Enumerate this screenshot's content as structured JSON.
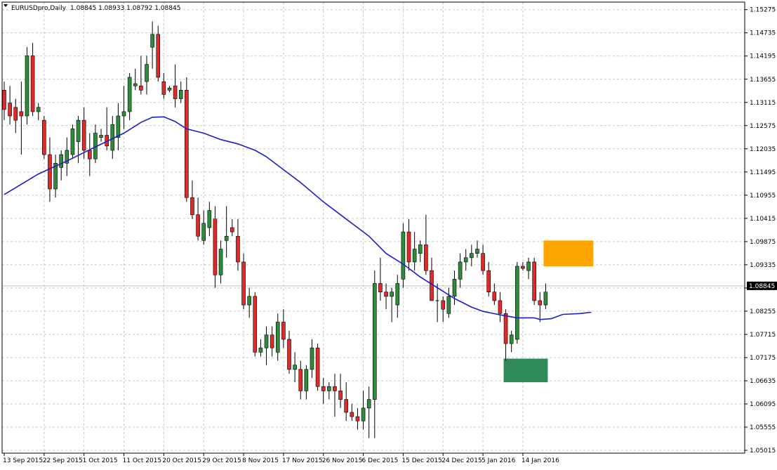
{
  "window": {
    "symbol_title": "EURUSDpro,Daily",
    "ohlc": "1.08845 1.08933 1.08792 1.08845"
  },
  "colors": {
    "background": "#ffffff",
    "grid": "#c8c8c8",
    "bull_candle": "#2e8b3c",
    "bear_candle": "#e02a2a",
    "wick": "#000000",
    "moving_average": "#1c1ccc",
    "resistance_zone": "#ffa500",
    "support_zone": "#2e8b57",
    "price_line": "#c0c0c0",
    "price_tag_bg": "#000000",
    "price_tag_text": "#ffffff"
  },
  "chart_data": {
    "type": "candlestick",
    "title": "EURUSDpro,Daily",
    "ylim": [
      1.0495,
      1.1545
    ],
    "y_ticks": [
      "1.15275",
      "1.14735",
      "1.14195",
      "1.13655",
      "1.13115",
      "1.12575",
      "1.12035",
      "1.11495",
      "1.10955",
      "1.10415",
      "1.09875",
      "1.09335",
      "1.08795",
      "1.08255",
      "1.07715",
      "1.07175",
      "1.06635",
      "1.06095",
      "1.05555",
      "1.05015"
    ],
    "x_labels": [
      {
        "label": "13 Sep 2015",
        "index": 0
      },
      {
        "label": "22 Sep 2015",
        "index": 7
      },
      {
        "label": "1 Oct 2015",
        "index": 14
      },
      {
        "label": "11 Oct 2015",
        "index": 21
      },
      {
        "label": "20 Oct 2015",
        "index": 28
      },
      {
        "label": "29 Oct 2015",
        "index": 35
      },
      {
        "label": "8 Nov 2015",
        "index": 42
      },
      {
        "label": "17 Nov 2015",
        "index": 49
      },
      {
        "label": "26 Nov 2015",
        "index": 56
      },
      {
        "label": "6 Dec 2015",
        "index": 63
      },
      {
        "label": "15 Dec 2015",
        "index": 70
      },
      {
        "label": "24 Dec 2015",
        "index": 77
      },
      {
        "label": "5 Jan 2016",
        "index": 84
      },
      {
        "label": "14 Jan 2016",
        "index": 91
      }
    ],
    "grid": true,
    "current_price": 1.08845,
    "current_price_label": "1.08845",
    "candles": [
      [
        1.134,
        1.136,
        1.127,
        1.1295
      ],
      [
        1.131,
        1.135,
        1.126,
        1.128
      ],
      [
        1.13,
        1.132,
        1.124,
        1.127
      ],
      [
        1.129,
        1.136,
        1.119,
        1.128
      ],
      [
        1.128,
        1.144,
        1.126,
        1.142
      ],
      [
        1.142,
        1.145,
        1.128,
        1.129
      ],
      [
        1.129,
        1.131,
        1.127,
        1.13
      ],
      [
        1.127,
        1.128,
        1.118,
        1.119
      ],
      [
        1.119,
        1.123,
        1.108,
        1.111
      ],
      [
        1.111,
        1.119,
        1.109,
        1.117
      ],
      [
        1.116,
        1.12,
        1.113,
        1.119
      ],
      [
        1.117,
        1.123,
        1.114,
        1.12
      ],
      [
        1.119,
        1.126,
        1.118,
        1.125
      ],
      [
        1.122,
        1.128,
        1.117,
        1.127
      ],
      [
        1.127,
        1.13,
        1.118,
        1.12
      ],
      [
        1.12,
        1.124,
        1.114,
        1.118
      ],
      [
        1.118,
        1.126,
        1.117,
        1.124
      ],
      [
        1.123,
        1.125,
        1.122,
        1.1235
      ],
      [
        1.1235,
        1.13,
        1.12,
        1.121
      ],
      [
        1.12,
        1.128,
        1.118,
        1.126
      ],
      [
        1.123,
        1.131,
        1.12,
        1.128
      ],
      [
        1.128,
        1.135,
        1.125,
        1.129
      ],
      [
        1.129,
        1.138,
        1.127,
        1.137
      ],
      [
        1.135,
        1.139,
        1.134,
        1.1355
      ],
      [
        1.135,
        1.142,
        1.133,
        1.134
      ],
      [
        1.136,
        1.142,
        1.133,
        1.14
      ],
      [
        1.144,
        1.15,
        1.139,
        1.147
      ],
      [
        1.147,
        1.149,
        1.136,
        1.137
      ],
      [
        1.136,
        1.138,
        1.132,
        1.133
      ],
      [
        1.134,
        1.135,
        1.1335,
        1.1345
      ],
      [
        1.135,
        1.14,
        1.13,
        1.132
      ],
      [
        1.132,
        1.136,
        1.131,
        1.134
      ],
      [
        1.134,
        1.137,
        1.108,
        1.109
      ],
      [
        1.109,
        1.113,
        1.104,
        1.105
      ],
      [
        1.105,
        1.109,
        1.099,
        1.1
      ],
      [
        1.099,
        1.106,
        1.098,
        1.103
      ],
      [
        1.102,
        1.108,
        1.1,
        1.106
      ],
      [
        1.104,
        1.107,
        1.088,
        1.091
      ],
      [
        1.091,
        1.099,
        1.089,
        1.097
      ],
      [
        1.099,
        1.107,
        1.095,
        1.1
      ],
      [
        1.102,
        1.104,
        1.1,
        1.101
      ],
      [
        1.1,
        1.104,
        1.092,
        1.094
      ],
      [
        1.094,
        1.096,
        1.083,
        1.084
      ],
      [
        1.084,
        1.088,
        1.081,
        1.086
      ],
      [
        1.086,
        1.087,
        1.072,
        1.073
      ],
      [
        1.073,
        1.076,
        1.072,
        1.074
      ],
      [
        1.074,
        1.079,
        1.07,
        1.077
      ],
      [
        1.077,
        1.079,
        1.072,
        1.074
      ],
      [
        1.073,
        1.082,
        1.071,
        1.08
      ],
      [
        1.08,
        1.083,
        1.074,
        1.076
      ],
      [
        1.076,
        1.078,
        1.068,
        1.069
      ],
      [
        1.069,
        1.073,
        1.066,
        1.07
      ],
      [
        1.069,
        1.071,
        1.062,
        1.064
      ],
      [
        1.064,
        1.07,
        1.062,
        1.069
      ],
      [
        1.069,
        1.076,
        1.067,
        1.074
      ],
      [
        1.074,
        1.075,
        1.064,
        1.065
      ],
      [
        1.065,
        1.067,
        1.061,
        1.064
      ],
      [
        1.064,
        1.066,
        1.062,
        1.065
      ],
      [
        1.065,
        1.068,
        1.058,
        1.064
      ],
      [
        1.064,
        1.068,
        1.06,
        1.062
      ],
      [
        1.062,
        1.066,
        1.057,
        1.059
      ],
      [
        1.059,
        1.061,
        1.057,
        1.058
      ],
      [
        1.058,
        1.06,
        1.055,
        1.057
      ],
      [
        1.057,
        1.064,
        1.055,
        1.06
      ],
      [
        1.06,
        1.065,
        1.053,
        1.062
      ],
      [
        1.062,
        1.092,
        1.053,
        1.089
      ],
      [
        1.089,
        1.095,
        1.085,
        1.087
      ],
      [
        1.087,
        1.089,
        1.083,
        1.086
      ],
      [
        1.086,
        1.088,
        1.08,
        1.087
      ],
      [
        1.084,
        1.091,
        1.081,
        1.089
      ],
      [
        1.09,
        1.103,
        1.088,
        1.101
      ],
      [
        1.101,
        1.104,
        1.092,
        1.094
      ],
      [
        1.094,
        1.101,
        1.092,
        1.097
      ],
      [
        1.096,
        1.099,
        1.094,
        1.098
      ],
      [
        1.098,
        1.105,
        1.091,
        1.092
      ],
      [
        1.092,
        1.095,
        1.085,
        1.085
      ],
      [
        1.085,
        1.089,
        1.08,
        1.085
      ],
      [
        1.085,
        1.086,
        1.08,
        1.083
      ],
      [
        1.082,
        1.088,
        1.081,
        1.086
      ],
      [
        1.086,
        1.092,
        1.084,
        1.09
      ],
      [
        1.09,
        1.096,
        1.088,
        1.094
      ],
      [
        1.094,
        1.097,
        1.092,
        1.095
      ],
      [
        1.095,
        1.098,
        1.093,
        1.096
      ],
      [
        1.096,
        1.099,
        1.095,
        1.097
      ],
      [
        1.096,
        1.098,
        1.091,
        1.092
      ],
      [
        1.092,
        1.094,
        1.086,
        1.087
      ],
      [
        1.087,
        1.089,
        1.084,
        1.085
      ],
      [
        1.085,
        1.087,
        1.08,
        1.082
      ],
      [
        1.082,
        1.083,
        1.071,
        1.075
      ],
      [
        1.075,
        1.078,
        1.073,
        1.077
      ],
      [
        1.076,
        1.094,
        1.075,
        1.093
      ],
      [
        1.093,
        1.094,
        1.092,
        1.0925
      ],
      [
        1.092,
        1.095,
        1.09,
        1.094
      ],
      [
        1.094,
        1.095,
        1.084,
        1.085
      ],
      [
        1.085,
        1.087,
        1.08,
        1.084
      ],
      [
        1.084,
        1.089,
        1.083,
        1.087
      ]
    ],
    "moving_average": [
      [
        0,
        1.1097
      ],
      [
        6,
        1.1145
      ],
      [
        11,
        1.1175
      ],
      [
        16,
        1.1208
      ],
      [
        21,
        1.124
      ],
      [
        24,
        1.1265
      ],
      [
        26,
        1.1277
      ],
      [
        28,
        1.1278
      ],
      [
        30,
        1.1267
      ],
      [
        32,
        1.125
      ],
      [
        35,
        1.124
      ],
      [
        38,
        1.1225
      ],
      [
        41,
        1.1215
      ],
      [
        44,
        1.12
      ],
      [
        46,
        1.1185
      ],
      [
        49,
        1.1155
      ],
      [
        52,
        1.1125
      ],
      [
        56,
        1.108
      ],
      [
        60,
        1.104
      ],
      [
        64,
        1.1
      ],
      [
        67,
        1.096
      ],
      [
        70,
        1.0935
      ],
      [
        73,
        1.0905
      ],
      [
        76,
        1.088
      ],
      [
        79,
        1.0855
      ],
      [
        82,
        1.0835
      ],
      [
        84,
        1.0825
      ],
      [
        87,
        1.0817
      ],
      [
        90,
        1.081
      ],
      [
        93,
        1.081
      ],
      [
        94,
        1.0806
      ],
      [
        96,
        1.0808
      ],
      [
        98,
        1.0818
      ],
      [
        101,
        1.082
      ],
      [
        103,
        1.0823
      ]
    ],
    "zones": [
      {
        "kind": "resistance",
        "from": 95,
        "to": 103,
        "y_top": 1.099,
        "y_bottom": 1.093
      },
      {
        "kind": "support",
        "from": 88,
        "to": 95,
        "y_top": 1.0715,
        "y_bottom": 1.066
      }
    ]
  }
}
